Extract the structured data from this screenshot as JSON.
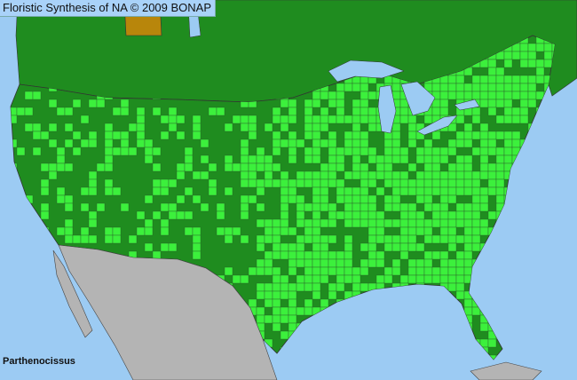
{
  "header": {
    "title": "Floristic Synthesis of NA © 2009 BONAP"
  },
  "map": {
    "taxon": "Parthenocissus",
    "colors": {
      "water": "#9ccbf3",
      "present_state": "#1f8c1f",
      "present_county": "#3cf03c",
      "absent_region": "#b4b4b4",
      "noxious_or_rare": "#b8860b",
      "border": "#333333"
    }
  }
}
